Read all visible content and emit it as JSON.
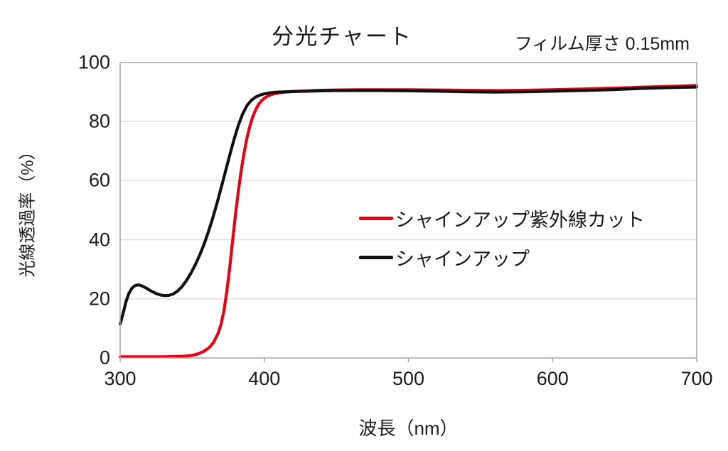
{
  "chart_data": {
    "type": "line",
    "title": "分光チャート",
    "annotation": "フィルム厚さ 0.15mm",
    "xlabel": "波長（nm）",
    "ylabel": "光線透過率（%）",
    "xlim": [
      300,
      700
    ],
    "ylim": [
      0,
      100
    ],
    "x_ticks": [
      "300",
      "400",
      "500",
      "600",
      "700"
    ],
    "x_tick_values": [
      300,
      400,
      500,
      600,
      700
    ],
    "y_ticks": [
      "0",
      "20",
      "40",
      "60",
      "80",
      "100"
    ],
    "y_tick_values": [
      0,
      20,
      40,
      60,
      80,
      100
    ],
    "grid": "horizontal",
    "legend_position": "inside-right",
    "frame_color": "#a6a6a6",
    "gridline_color": "#dcdcdc",
    "series": [
      {
        "name": "シャインアップ紫外線カット",
        "color": "#e60012",
        "points": [
          [
            300,
            0.4
          ],
          [
            310,
            0.4
          ],
          [
            320,
            0.4
          ],
          [
            330,
            0.4
          ],
          [
            340,
            0.5
          ],
          [
            345,
            0.6
          ],
          [
            350,
            0.9
          ],
          [
            354,
            1.4
          ],
          [
            358,
            2.2
          ],
          [
            362,
            3.6
          ],
          [
            365,
            5.4
          ],
          [
            368,
            8.4
          ],
          [
            370,
            11.4
          ],
          [
            372,
            16
          ],
          [
            374,
            22.5
          ],
          [
            376,
            30.5
          ],
          [
            378,
            39.5
          ],
          [
            380,
            48.5
          ],
          [
            382,
            56.5
          ],
          [
            384,
            63.5
          ],
          [
            386,
            69.5
          ],
          [
            388,
            74.5
          ],
          [
            390,
            78.5
          ],
          [
            392,
            81.6
          ],
          [
            394,
            84
          ],
          [
            396,
            85.8
          ],
          [
            398,
            87
          ],
          [
            400,
            87.9
          ],
          [
            403,
            88.8
          ],
          [
            406,
            89.3
          ],
          [
            410,
            89.7
          ],
          [
            415,
            90
          ],
          [
            420,
            90.2
          ],
          [
            430,
            90.4
          ],
          [
            440,
            90.6
          ],
          [
            450,
            90.7
          ],
          [
            465,
            90.8
          ],
          [
            480,
            90.8
          ],
          [
            500,
            90.8
          ],
          [
            520,
            90.7
          ],
          [
            540,
            90.6
          ],
          [
            560,
            90.5
          ],
          [
            580,
            90.6
          ],
          [
            600,
            90.8
          ],
          [
            620,
            91.0
          ],
          [
            640,
            91.3
          ],
          [
            660,
            91.6
          ],
          [
            680,
            91.9
          ],
          [
            700,
            92.2
          ]
        ]
      },
      {
        "name": "シャインアップ",
        "color": "#111111",
        "points": [
          [
            300,
            11.5
          ],
          [
            302,
            15
          ],
          [
            304,
            19
          ],
          [
            306,
            21.8
          ],
          [
            308,
            23.5
          ],
          [
            310,
            24.4
          ],
          [
            312,
            24.7
          ],
          [
            314,
            24.6
          ],
          [
            316,
            24.2
          ],
          [
            319,
            23.4
          ],
          [
            322,
            22.5
          ],
          [
            325,
            21.8
          ],
          [
            328,
            21.3
          ],
          [
            331,
            21.1
          ],
          [
            334,
            21.2
          ],
          [
            337,
            21.7
          ],
          [
            340,
            22.7
          ],
          [
            343,
            24.2
          ],
          [
            346,
            26.2
          ],
          [
            349,
            28.6
          ],
          [
            352,
            31.4
          ],
          [
            355,
            34.6
          ],
          [
            358,
            38.2
          ],
          [
            361,
            42.4
          ],
          [
            364,
            47
          ],
          [
            367,
            52
          ],
          [
            370,
            57.4
          ],
          [
            373,
            63
          ],
          [
            376,
            68.6
          ],
          [
            379,
            74
          ],
          [
            382,
            78.8
          ],
          [
            385,
            82.6
          ],
          [
            388,
            85.4
          ],
          [
            391,
            87.2
          ],
          [
            394,
            88.3
          ],
          [
            397,
            89
          ],
          [
            400,
            89.4
          ],
          [
            405,
            89.8
          ],
          [
            410,
            90
          ],
          [
            420,
            90.2
          ],
          [
            430,
            90.3
          ],
          [
            440,
            90.4
          ],
          [
            450,
            90.5
          ],
          [
            465,
            90.5
          ],
          [
            480,
            90.5
          ],
          [
            500,
            90.4
          ],
          [
            520,
            90.3
          ],
          [
            540,
            90.1
          ],
          [
            560,
            90.0
          ],
          [
            580,
            90.1
          ],
          [
            600,
            90.3
          ],
          [
            620,
            90.5
          ],
          [
            640,
            90.8
          ],
          [
            660,
            91.2
          ],
          [
            680,
            91.5
          ],
          [
            700,
            91.7
          ]
        ]
      }
    ],
    "legend": [
      {
        "label": "シャインアップ紫外線カット",
        "color": "#e60012"
      },
      {
        "label": "シャインアップ",
        "color": "#111111"
      }
    ]
  }
}
